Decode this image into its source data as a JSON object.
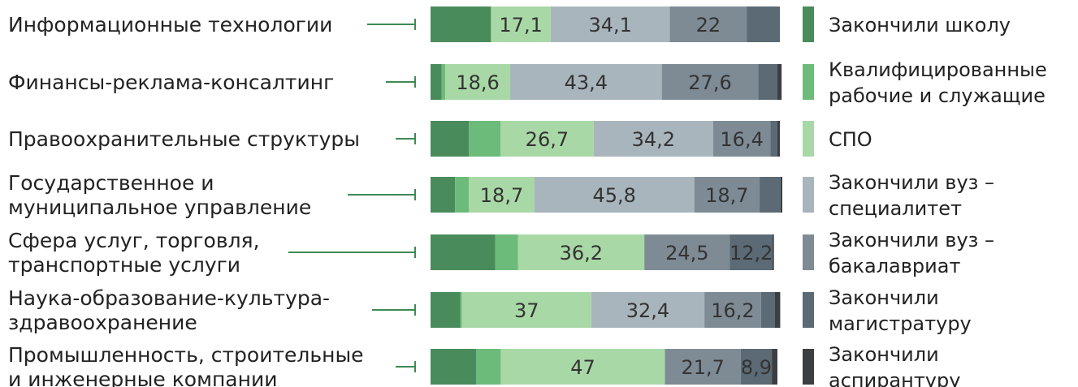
{
  "chart_data": {
    "type": "bar",
    "orientation": "horizontal",
    "stacked": true,
    "percent_scale": true,
    "grid": false,
    "legend_position": "right",
    "categories": [
      "Информационные технологии",
      "Финансы-реклама-консалтинг",
      "Правоохранительные структуры",
      "Государственное и муниципальное управление",
      "Сфера услуг, торговля, транспортные услуги",
      "Наука-образование-культура-здравоохранение",
      "Промышленность, строительные и инженерные компании"
    ],
    "category_label_lines": [
      [
        "Информационные технологии"
      ],
      [
        "Финансы-реклама-консалтинг"
      ],
      [
        "Правоохранительные структуры"
      ],
      [
        "Государственное и",
        "муниципальное управление"
      ],
      [
        "Сфера услуг, торговля,",
        "транспортные услуги"
      ],
      [
        "Наука-образование-культура-",
        "здравоохранение"
      ],
      [
        "Промышленность, строительные",
        "и инженерные компании"
      ]
    ],
    "series": [
      {
        "name": "Закончили школу",
        "name_lines": [
          "Закончили школу"
        ],
        "color": "#4a8b5c",
        "values": [
          17.3,
          3.2,
          11.0,
          7.0,
          18.5,
          8.5,
          13.1
        ]
      },
      {
        "name": "Квалифицированные рабочие и служащие",
        "name_lines": [
          "Квалифицированные",
          "рабочие и служащие"
        ],
        "color": "#6cbb7a",
        "values": [
          0.0,
          1.0,
          9.0,
          4.0,
          6.5,
          0.5,
          7.0
        ]
      },
      {
        "name": "СПО",
        "name_lines": [
          "СПО"
        ],
        "color": "#a8d8a6",
        "values": [
          17.1,
          18.6,
          26.7,
          18.7,
          36.2,
          37,
          47
        ]
      },
      {
        "name": "Закончили вуз – специалитет",
        "name_lines": [
          "Закончили вуз –",
          "специалитет"
        ],
        "color": "#a9b5bc",
        "values": [
          34.1,
          43.4,
          34.2,
          45.8,
          0,
          32.4,
          0
        ]
      },
      {
        "name": "Закончили вуз – бакалавриат",
        "name_lines": [
          "Закончили вуз –",
          "бакалавриат"
        ],
        "color": "#7e8b95",
        "values": [
          22,
          27.6,
          16.4,
          18.7,
          24.5,
          16.2,
          21.7
        ]
      },
      {
        "name": "Закончили магистратуру",
        "name_lines": [
          "Закончили",
          "магистратуру"
        ],
        "color": "#5b6a74",
        "values": [
          9.5,
          5.5,
          2.0,
          6.0,
          12.2,
          4.0,
          8.9
        ]
      },
      {
        "name": "Закончили аспирантуру",
        "name_lines": [
          "Закончили",
          "аспирантуру"
        ],
        "color": "#3c3f42",
        "values": [
          0,
          1.2,
          0.7,
          0.5,
          0.4,
          1.5,
          1.6
        ]
      }
    ],
    "data_labels": [
      [
        "",
        "",
        "17,1",
        "34,1",
        "22",
        "",
        ""
      ],
      [
        "",
        "",
        "18,6",
        "43,4",
        "27,6",
        "",
        ""
      ],
      [
        "",
        "",
        "26,7",
        "34,2",
        "16,4",
        "",
        ""
      ],
      [
        "",
        "",
        "18,7",
        "45,8",
        "18,7",
        "",
        ""
      ],
      [
        "",
        "",
        "36,2",
        "",
        "24,5",
        "12,2",
        ""
      ],
      [
        "",
        "",
        "37",
        "32,4",
        "16,2",
        "",
        ""
      ],
      [
        "",
        "",
        "47",
        "",
        "21,7",
        "8,9",
        ""
      ]
    ]
  }
}
